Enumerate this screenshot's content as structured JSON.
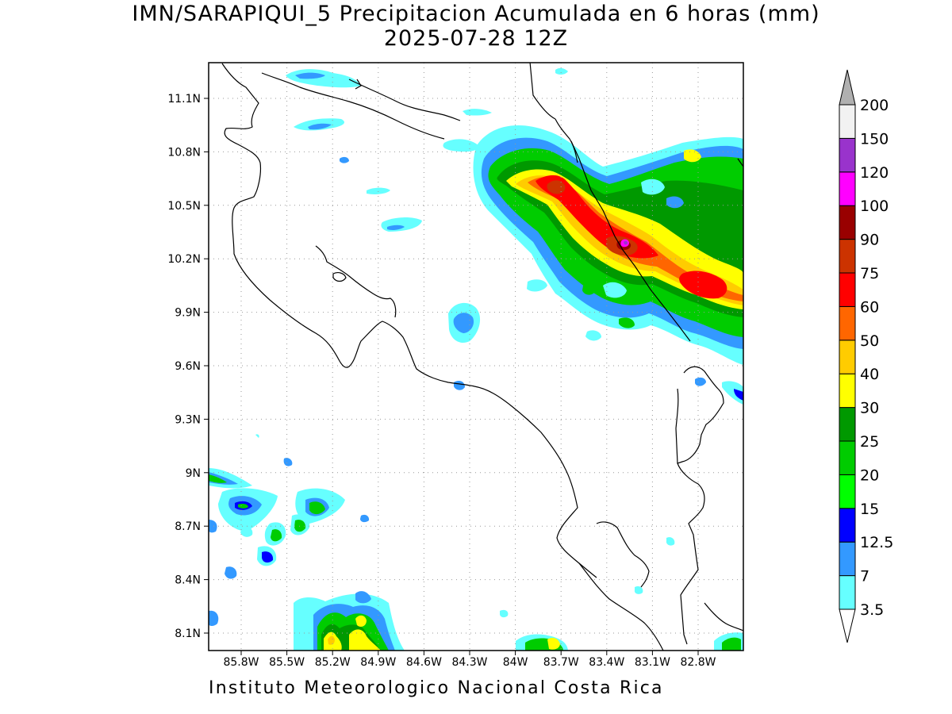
{
  "title": {
    "line1": "IMN/SARAPIQUI_5 Precipitacion Acumulada en 6 horas (mm)",
    "line2": "2025-07-28 12Z"
  },
  "footer": "Instituto Meteorologico Nacional Costa Rica",
  "axes": {
    "lat_labels": [
      "11.1N",
      "10.8N",
      "10.5N",
      "10.2N",
      "9.9N",
      "9.6N",
      "9.3N",
      "9N",
      "8.7N",
      "8.4N",
      "8.1N"
    ],
    "lon_labels": [
      "85.8W",
      "85.5W",
      "85.2W",
      "84.9W",
      "84.6W",
      "84.3W",
      "84W",
      "83.7W",
      "83.4W",
      "83.1W",
      "82.8W"
    ]
  },
  "colorbar": {
    "levels": [
      "3.5",
      "7",
      "12.5",
      "15",
      "20",
      "25",
      "30",
      "40",
      "50",
      "60",
      "75",
      "90",
      "100",
      "120",
      "150",
      "200"
    ],
    "colors": [
      "#66ffff",
      "#3399ff",
      "#0000ff",
      "#00ff00",
      "#00cc00",
      "#009900",
      "#ffff00",
      "#ffcc00",
      "#ff6600",
      "#ff0000",
      "#cc3300",
      "#990000",
      "#ff00ff",
      "#9933cc",
      "#f2f2f2",
      "#b0b0b0"
    ],
    "under_color": "#ffffff",
    "over_color": "#b0b0b0"
  }
}
